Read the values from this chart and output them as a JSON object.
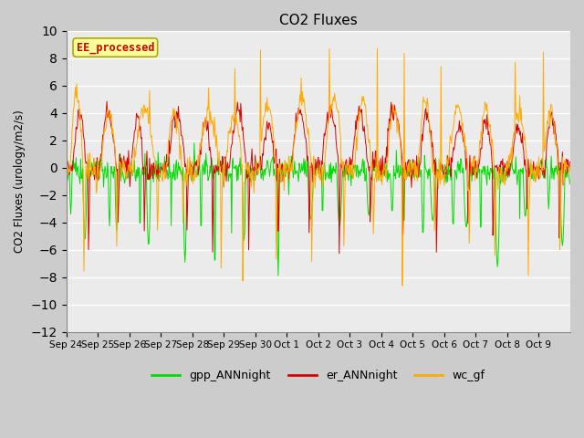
{
  "title": "CO2 Fluxes",
  "ylabel": "CO2 Fluxes (urology/m2/s)",
  "ylim": [
    -12,
    10
  ],
  "yticks": [
    -12,
    -10,
    -8,
    -6,
    -4,
    -2,
    0,
    2,
    4,
    6,
    8,
    10
  ],
  "plot_bg_color": "#ebebeb",
  "line_gpp": "#00dd00",
  "line_er": "#dd0000",
  "line_wc": "#ffaa00",
  "legend_label_gpp": "gpp_ANNnight",
  "legend_label_er": "er_ANNnight",
  "legend_label_wc": "wc_gf",
  "annotation_text": "EE_processed",
  "annotation_color": "#cc0000",
  "annotation_bg": "#ffff99",
  "x_tick_labels": [
    "Sep 24",
    "Sep 25",
    "Sep 26",
    "Sep 27",
    "Sep 28",
    "Sep 29",
    "Sep 30",
    "Oct 1",
    "Oct 2",
    "Oct 3",
    "Oct 4",
    "Oct 5",
    "Oct 6",
    "Oct 7",
    "Oct 8",
    "Oct 9"
  ],
  "n_days": 16,
  "points_per_day": 48
}
